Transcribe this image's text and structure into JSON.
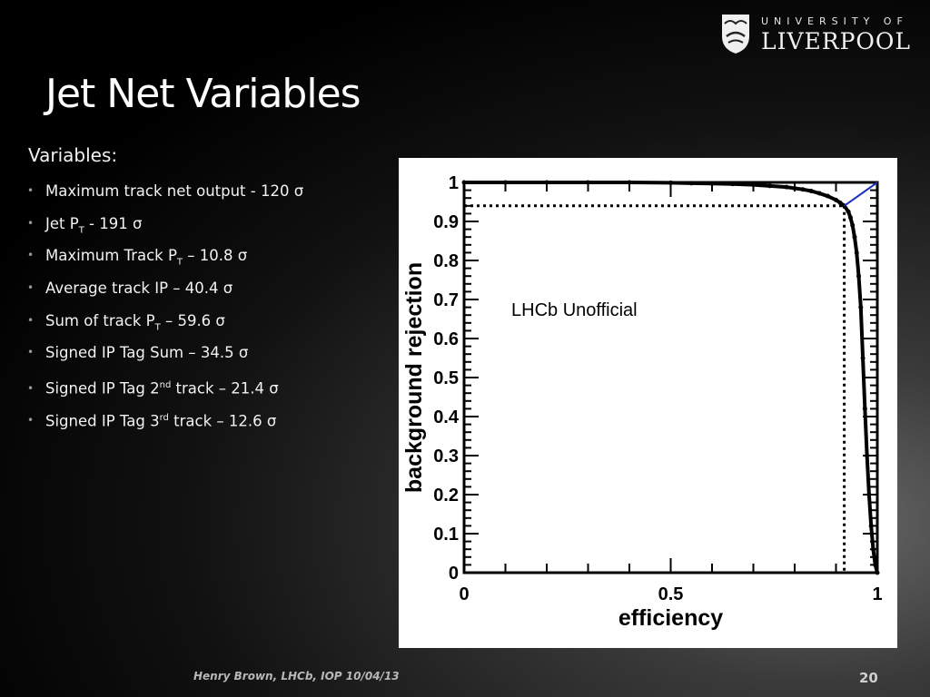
{
  "logo": {
    "line1": "UNIVERSITY OF",
    "line2": "LIVERPOOL",
    "crest_icon": "crest-icon"
  },
  "title": "Jet Net Variables",
  "heading": "Variables:",
  "bullets": [
    {
      "pre": "Maximum track net output - 120 σ"
    },
    {
      "pre": "Jet P",
      "sub": "T",
      "post": " - 191 σ"
    },
    {
      "pre": "Maximum Track P",
      "sub": "T",
      "post": " – 10.8 σ"
    },
    {
      "pre": "Average track IP – 40.4 σ"
    },
    {
      "pre": "Sum of track P",
      "sub": "T",
      "post": " – 59.6 σ"
    },
    {
      "pre": "Signed IP Tag Sum – 34.5 σ"
    },
    {
      "pre": "Signed IP Tag 2",
      "sup": "nd",
      "post": " track – 21.4 σ"
    },
    {
      "pre": "Signed IP Tag 3",
      "sup": "rd",
      "post": " track – 12.6 σ"
    }
  ],
  "chart_data": {
    "type": "line",
    "xlabel": "efficiency",
    "ylabel": "background rejection",
    "xlim": [
      0,
      1
    ],
    "ylim": [
      0,
      1
    ],
    "x_ticks": [
      "0",
      "0.5",
      "1"
    ],
    "y_ticks": [
      "0",
      "0.1",
      "0.2",
      "0.3",
      "0.4",
      "0.5",
      "0.6",
      "0.7",
      "0.8",
      "0.9",
      "1"
    ],
    "annotation": "LHCb Unofficial",
    "working_point": {
      "x": 0.92,
      "y": 0.94
    },
    "series": [
      {
        "color": "#000000",
        "x": [
          0.0,
          0.1,
          0.2,
          0.3,
          0.4,
          0.5,
          0.55,
          0.6,
          0.65,
          0.7,
          0.74,
          0.78,
          0.8,
          0.82,
          0.84,
          0.86,
          0.88,
          0.9,
          0.91,
          0.92,
          0.93,
          0.935,
          0.94,
          0.945,
          0.95,
          0.955,
          0.96,
          0.965,
          0.97,
          0.975,
          0.98,
          0.985,
          0.99,
          0.995,
          1.0
        ],
        "y": [
          1.0,
          1.0,
          1.0,
          1.0,
          1.0,
          0.999,
          0.998,
          0.997,
          0.996,
          0.994,
          0.991,
          0.988,
          0.985,
          0.982,
          0.978,
          0.972,
          0.965,
          0.955,
          0.948,
          0.94,
          0.925,
          0.91,
          0.89,
          0.86,
          0.82,
          0.76,
          0.68,
          0.55,
          0.42,
          0.3,
          0.2,
          0.12,
          0.06,
          0.02,
          0.0
        ]
      },
      {
        "color": "#1f2fbf",
        "x": [
          0.92,
          1.0
        ],
        "y": [
          0.94,
          1.0
        ]
      }
    ]
  },
  "footer": "Henry Brown, LHCb, IOP 10/04/13",
  "page_number": "20"
}
